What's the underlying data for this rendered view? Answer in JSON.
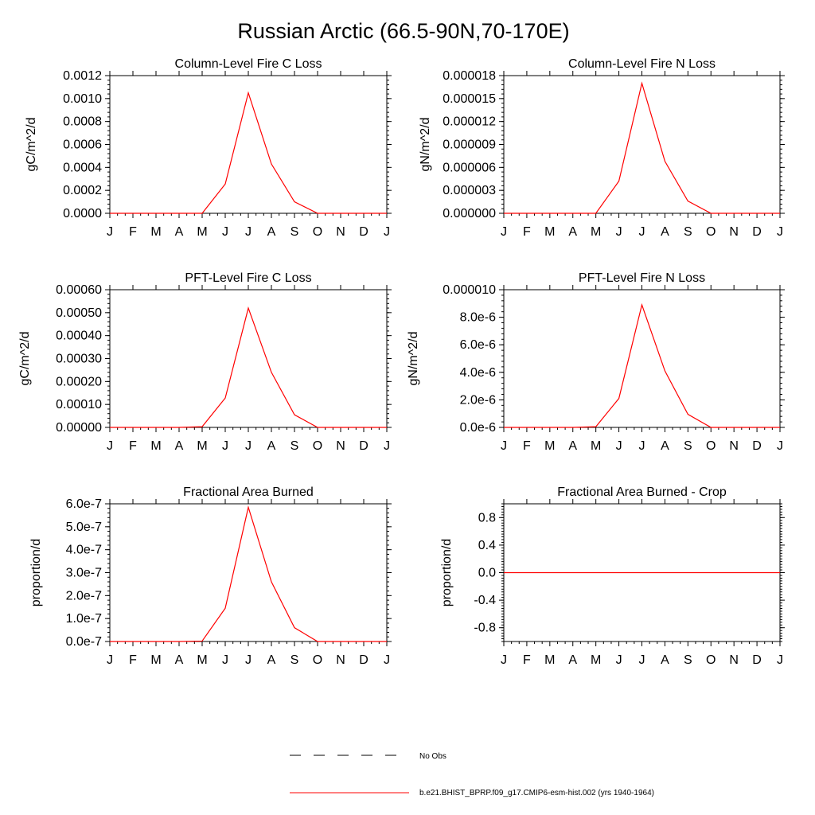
{
  "figure": {
    "title": "Russian Arctic (66.5-90N,70-170E)",
    "legend": [
      {
        "label": "No Obs",
        "color": "#000000",
        "style": "dashed"
      },
      {
        "label": "b.e21.BHIST_BPRP.f09_g17.CMIP6-esm-hist.002 (yrs 1940-1964)",
        "color": "#ff0000",
        "style": "solid"
      }
    ]
  },
  "chart_data": [
    {
      "type": "line",
      "title": "Column-Level Fire C Loss",
      "ylabel": "gC/m^2/d",
      "x": [
        "J",
        "F",
        "M",
        "A",
        "M",
        "J",
        "J",
        "A",
        "S",
        "O",
        "N",
        "D",
        "J"
      ],
      "ylim": [
        0,
        0.0012
      ],
      "yticks": [
        "0.0000",
        "0.0002",
        "0.0004",
        "0.0006",
        "0.0008",
        "0.0010",
        "0.0012"
      ],
      "series": [
        {
          "color": "#ff0000",
          "values": [
            0,
            0,
            0,
            0,
            0,
            0.000255,
            0.00105,
            0.00043,
            0.0001,
            0,
            0,
            0,
            0
          ]
        }
      ]
    },
    {
      "type": "line",
      "title": "Column-Level Fire N Loss",
      "ylabel": "gN/m^2/d",
      "x": [
        "J",
        "F",
        "M",
        "A",
        "M",
        "J",
        "J",
        "A",
        "S",
        "O",
        "N",
        "D",
        "J"
      ],
      "ylim": [
        0,
        1.8e-05
      ],
      "yticks": [
        "0.000000",
        "0.000003",
        "0.000006",
        "0.000009",
        "0.000012",
        "0.000015",
        "0.000018"
      ],
      "series": [
        {
          "color": "#ff0000",
          "values": [
            0,
            0,
            0,
            0,
            0,
            4.2e-06,
            1.7e-05,
            6.8e-06,
            1.6e-06,
            0,
            0,
            0,
            0
          ]
        }
      ]
    },
    {
      "type": "line",
      "title": "PFT-Level Fire C Loss",
      "ylabel": "gC/m^2/d",
      "x": [
        "J",
        "F",
        "M",
        "A",
        "M",
        "J",
        "J",
        "A",
        "S",
        "O",
        "N",
        "D",
        "J"
      ],
      "ylim": [
        0,
        0.0006
      ],
      "yticks": [
        "0.00000",
        "0.00010",
        "0.00020",
        "0.00030",
        "0.00040",
        "0.00050",
        "0.00060"
      ],
      "series": [
        {
          "color": "#ff0000",
          "values": [
            0,
            0,
            0,
            0,
            3e-06,
            0.000128,
            0.00052,
            0.00024,
            5.5e-05,
            0,
            0,
            0,
            0
          ]
        }
      ]
    },
    {
      "type": "line",
      "title": "PFT-Level Fire N Loss",
      "ylabel": "gN/m^2/d",
      "x": [
        "J",
        "F",
        "M",
        "A",
        "M",
        "J",
        "J",
        "A",
        "S",
        "O",
        "N",
        "D",
        "J"
      ],
      "ylim": [
        0,
        1e-05
      ],
      "yticks": [
        "0.0e-6",
        "2.0e-6",
        "4.0e-6",
        "6.0e-6",
        "8.0e-6",
        "0.000010"
      ],
      "series": [
        {
          "color": "#ff0000",
          "values": [
            0,
            0,
            0,
            0,
            5e-08,
            2.1e-06,
            8.9e-06,
            4.1e-06,
            9.5e-07,
            0,
            0,
            0,
            0
          ]
        }
      ]
    },
    {
      "type": "line",
      "title": "Fractional Area Burned",
      "ylabel": "proportion/d",
      "x": [
        "J",
        "F",
        "M",
        "A",
        "M",
        "J",
        "J",
        "A",
        "S",
        "O",
        "N",
        "D",
        "J"
      ],
      "ylim": [
        0,
        6e-07
      ],
      "yticks": [
        "0.0e-7",
        "1.0e-7",
        "2.0e-7",
        "3.0e-7",
        "4.0e-7",
        "5.0e-7",
        "6.0e-7"
      ],
      "series": [
        {
          "color": "#ff0000",
          "values": [
            0,
            0,
            0,
            0,
            2e-09,
            1.45e-07,
            5.85e-07,
            2.6e-07,
            6e-08,
            0,
            0,
            0,
            0
          ]
        }
      ]
    },
    {
      "type": "line",
      "title": "Fractional Area Burned - Crop",
      "ylabel": "proportion/d",
      "x": [
        "J",
        "F",
        "M",
        "A",
        "M",
        "J",
        "J",
        "A",
        "S",
        "O",
        "N",
        "D",
        "J"
      ],
      "ylim": [
        -1.0,
        1.0
      ],
      "ytickvalues": [
        -0.8,
        -0.4,
        0.0,
        0.4,
        0.8
      ],
      "yticks": [
        "-0.8",
        "-0.4",
        "0.0",
        "0.4",
        "0.8"
      ],
      "series": [
        {
          "color": "#ff0000",
          "values": [
            0,
            0,
            0,
            0,
            0,
            0,
            0,
            0,
            0,
            0,
            0,
            0,
            0
          ]
        }
      ]
    }
  ]
}
